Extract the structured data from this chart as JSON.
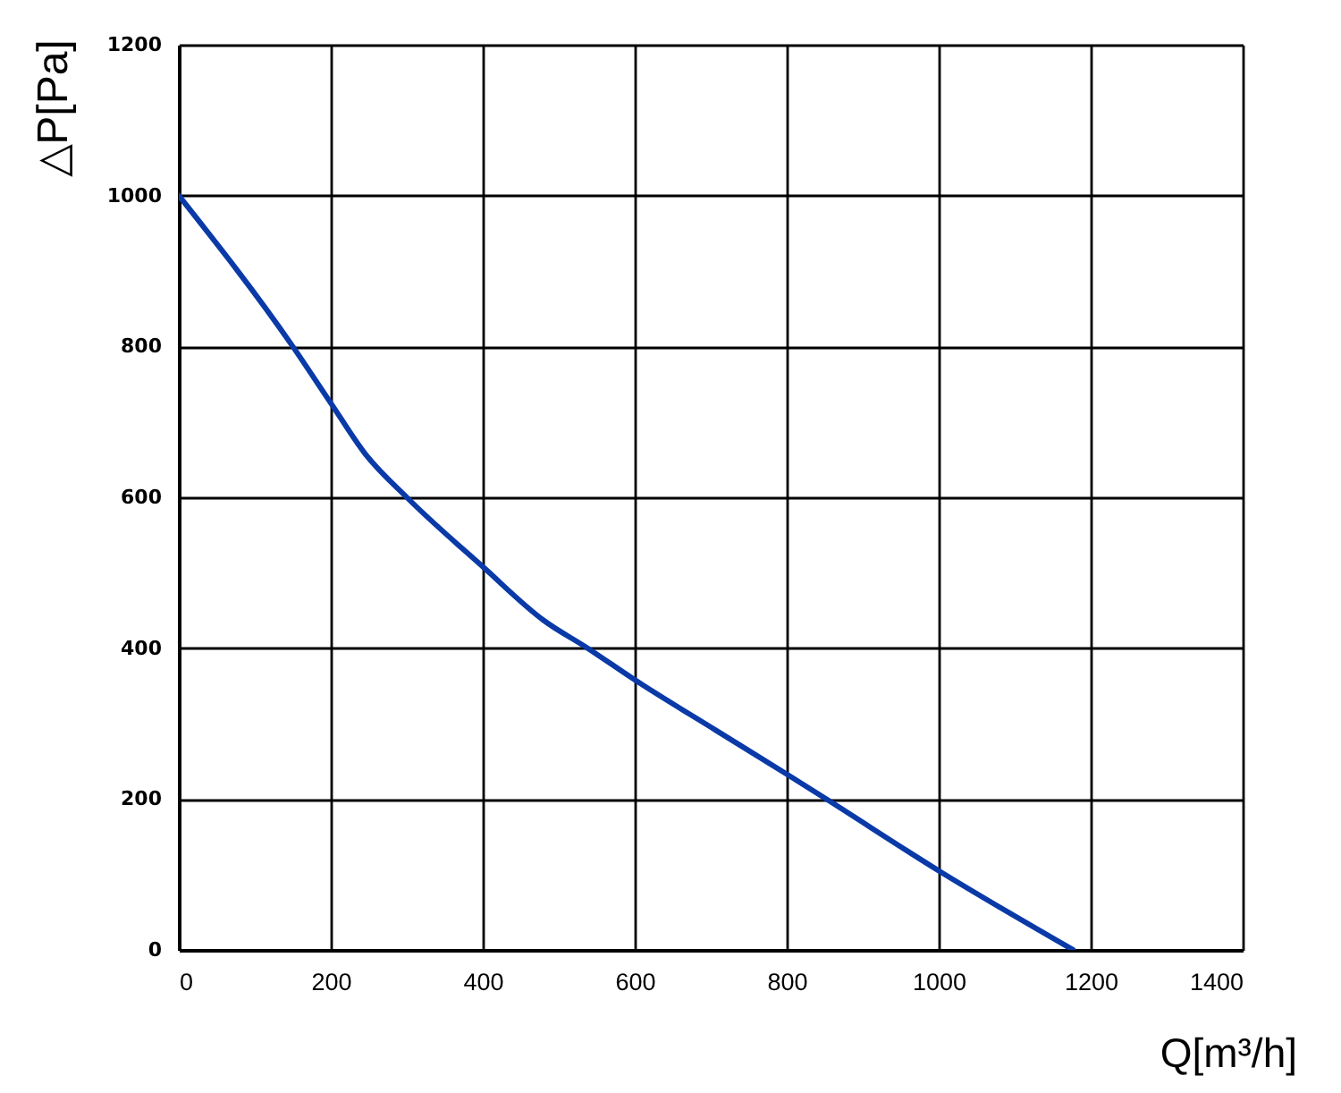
{
  "chart_data": {
    "type": "line",
    "xlabel": "Q[m³/h]",
    "ylabel": "△P[Pa]",
    "x": [
      0,
      150,
      200,
      245,
      300,
      400,
      480,
      538,
      600,
      707,
      800,
      852,
      1000,
      1177
    ],
    "values": [
      1000,
      800,
      725,
      658,
      600,
      508,
      437,
      400,
      358,
      291,
      233,
      200,
      105,
      0
    ],
    "color": "#0a3aa8",
    "xlim": [
      0,
      1400
    ],
    "ylim": [
      0,
      1200
    ],
    "xticks": [
      0,
      200,
      400,
      600,
      800,
      1000,
      1200,
      1400
    ],
    "yticks": [
      0,
      200,
      400,
      600,
      800,
      1000,
      1200
    ],
    "grid": true,
    "marker": "none",
    "line_style": "solid"
  }
}
